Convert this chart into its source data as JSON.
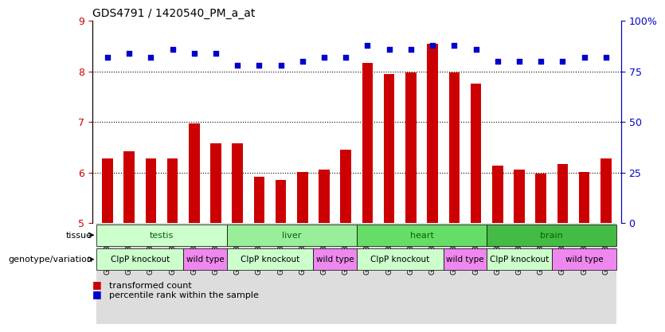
{
  "title": "GDS4791 / 1420540_PM_a_at",
  "samples": [
    "GSM988357",
    "GSM988358",
    "GSM988359",
    "GSM988360",
    "GSM988361",
    "GSM988362",
    "GSM988363",
    "GSM988364",
    "GSM988365",
    "GSM988366",
    "GSM988367",
    "GSM988368",
    "GSM988381",
    "GSM988382",
    "GSM988383",
    "GSM988384",
    "GSM988385",
    "GSM988386",
    "GSM988375",
    "GSM988376",
    "GSM988377",
    "GSM988378",
    "GSM988379",
    "GSM988380"
  ],
  "bar_values": [
    6.28,
    6.42,
    6.27,
    6.28,
    6.97,
    6.58,
    6.58,
    5.92,
    5.85,
    6.01,
    6.05,
    6.45,
    8.17,
    7.94,
    7.97,
    8.55,
    7.97,
    7.76,
    6.13,
    6.05,
    5.97,
    6.17,
    6.01,
    6.27
  ],
  "dot_values": [
    82,
    84,
    82,
    86,
    84,
    84,
    78,
    78,
    78,
    80,
    82,
    82,
    88,
    86,
    86,
    88,
    88,
    86,
    80,
    80,
    80,
    80,
    82,
    82
  ],
  "ylim": [
    5,
    9
  ],
  "y_ticks": [
    5,
    6,
    7,
    8,
    9
  ],
  "y2_ticks": [
    0,
    25,
    50,
    75,
    100
  ],
  "bar_color": "#cc0000",
  "dot_color": "#0000cc",
  "grid_color": "#000000",
  "tissues": [
    {
      "label": "testis",
      "start": 0,
      "end": 6,
      "color": "#ccffcc"
    },
    {
      "label": "liver",
      "start": 6,
      "end": 12,
      "color": "#99ee99"
    },
    {
      "label": "heart",
      "start": 12,
      "end": 18,
      "color": "#66dd66"
    },
    {
      "label": "brain",
      "start": 18,
      "end": 24,
      "color": "#44bb44"
    }
  ],
  "genotypes": [
    {
      "label": "ClpP knockout",
      "start": 0,
      "end": 4,
      "color": "#ccffcc"
    },
    {
      "label": "wild type",
      "start": 4,
      "end": 6,
      "color": "#ee88ee"
    },
    {
      "label": "ClpP knockout",
      "start": 6,
      "end": 10,
      "color": "#ccffcc"
    },
    {
      "label": "wild type",
      "start": 10,
      "end": 12,
      "color": "#ee88ee"
    },
    {
      "label": "ClpP knockout",
      "start": 12,
      "end": 16,
      "color": "#ccffcc"
    },
    {
      "label": "wild type",
      "start": 16,
      "end": 18,
      "color": "#ee88ee"
    },
    {
      "label": "ClpP knockout",
      "start": 18,
      "end": 21,
      "color": "#ccffcc"
    },
    {
      "label": "wild type",
      "start": 21,
      "end": 24,
      "color": "#ee88ee"
    }
  ],
  "tissue_label_color": "#006600",
  "genotype_label_color": "#006600",
  "legend_bar_label": "transformed count",
  "legend_dot_label": "percentile rank within the sample",
  "tissue_row_label": "tissue",
  "genotype_row_label": "genotype/variation",
  "background_color": "#ffffff",
  "tick_label_color": "#cc0000",
  "right_tick_color": "#0000cc"
}
